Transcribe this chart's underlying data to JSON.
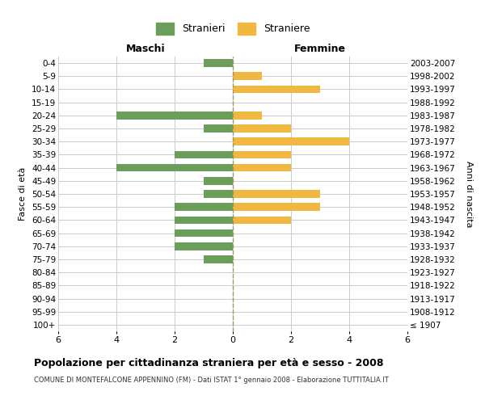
{
  "age_groups": [
    "100+",
    "95-99",
    "90-94",
    "85-89",
    "80-84",
    "75-79",
    "70-74",
    "65-69",
    "60-64",
    "55-59",
    "50-54",
    "45-49",
    "40-44",
    "35-39",
    "30-34",
    "25-29",
    "20-24",
    "15-19",
    "10-14",
    "5-9",
    "0-4"
  ],
  "birth_years": [
    "≤ 1907",
    "1908-1912",
    "1913-1917",
    "1918-1922",
    "1923-1927",
    "1928-1932",
    "1933-1937",
    "1938-1942",
    "1943-1947",
    "1948-1952",
    "1953-1957",
    "1958-1962",
    "1963-1967",
    "1968-1972",
    "1973-1977",
    "1978-1982",
    "1983-1987",
    "1988-1992",
    "1993-1997",
    "1998-2002",
    "2003-2007"
  ],
  "males": [
    0,
    0,
    0,
    0,
    0,
    1,
    2,
    2,
    2,
    2,
    1,
    1,
    4,
    2,
    0,
    1,
    4,
    0,
    0,
    0,
    1
  ],
  "females": [
    0,
    0,
    0,
    0,
    0,
    0,
    0,
    0,
    2,
    3,
    3,
    0,
    2,
    2,
    4,
    2,
    1,
    0,
    3,
    1,
    0
  ],
  "male_color": "#6a9e5a",
  "female_color": "#f0b840",
  "grid_color": "#cccccc",
  "center_line_color": "#999966",
  "title": "Popolazione per cittadinanza straniera per età e sesso - 2008",
  "subtitle": "COMUNE DI MONTEFALCONE APPENNINO (FM) - Dati ISTAT 1° gennaio 2008 - Elaborazione TUTTITALIA.IT",
  "xlabel_left": "Maschi",
  "xlabel_right": "Femmine",
  "ylabel_left": "Fasce di età",
  "ylabel_right": "Anni di nascita",
  "legend_male": "Stranieri",
  "legend_female": "Straniere",
  "xlim": 6,
  "background_color": "#ffffff"
}
